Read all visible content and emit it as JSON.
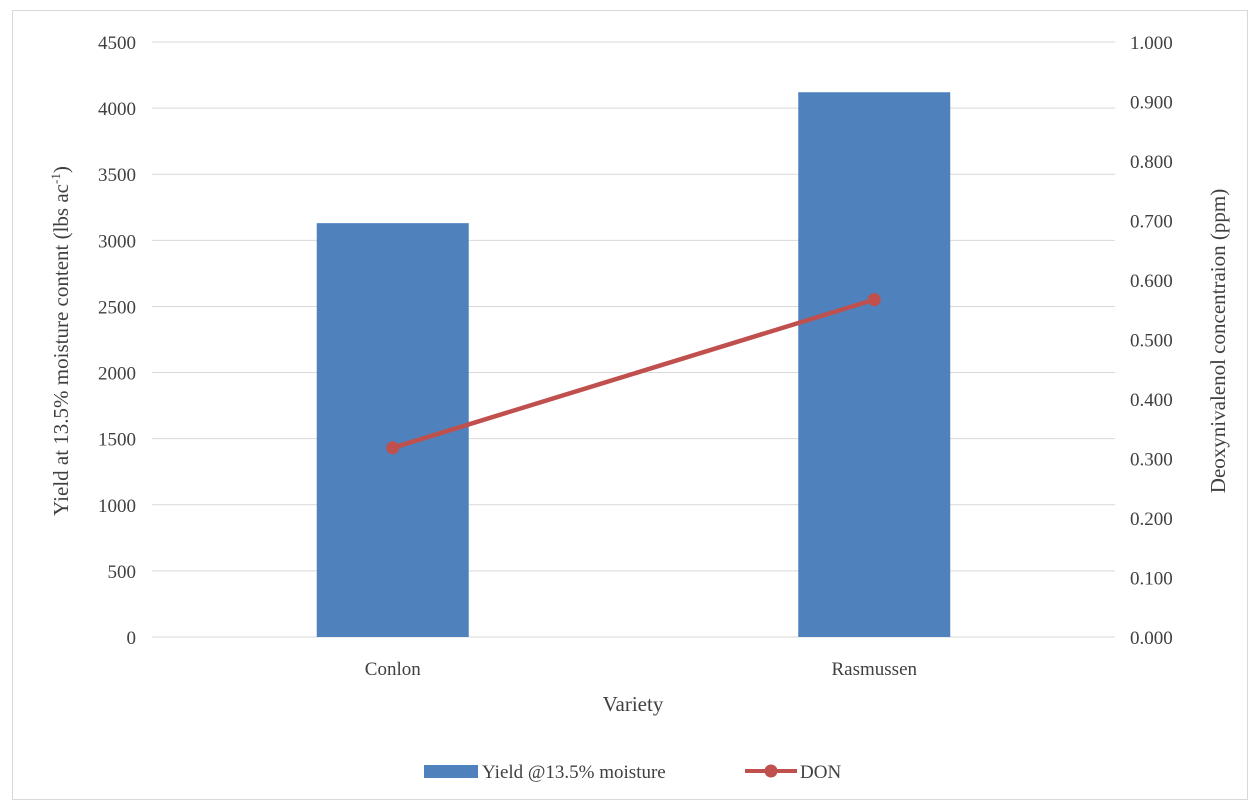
{
  "chart_data": {
    "type": "bar",
    "categories": [
      "Conlon",
      "Rasmussen"
    ],
    "series": [
      {
        "name": "Yield @13.5% moisture",
        "type": "bar",
        "axis": "left",
        "values": [
          3130,
          4120
        ],
        "color": "#4f81bd"
      },
      {
        "name": "DON",
        "type": "line",
        "axis": "right",
        "values": [
          0.318,
          0.567
        ],
        "color": "#c0504d"
      }
    ],
    "xlabel": "Variety",
    "ylabel_left": "Yield at 13.5% moisture content (lbs ac-1)",
    "ylabel_left_main": "Yield at 13.5% moisture content (lbs ac",
    "ylabel_left_sup": "-1",
    "ylabel_left_end": ")",
    "ylabel_right": "Deoxynivalenol concentraion (ppm)",
    "ylim_left": [
      0,
      4500
    ],
    "yticks_left": [
      "0",
      "500",
      "1000",
      "1500",
      "2000",
      "2500",
      "3000",
      "3500",
      "4000",
      "4500"
    ],
    "ylim_right": [
      0,
      1.0
    ],
    "yticks_right": [
      "0.000",
      "0.100",
      "0.200",
      "0.300",
      "0.400",
      "0.500",
      "0.600",
      "0.700",
      "0.800",
      "0.900",
      "1.000"
    ],
    "grid": true,
    "legend_position": "bottom"
  }
}
